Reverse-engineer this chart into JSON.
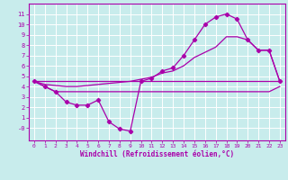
{
  "xlabel": "Windchill (Refroidissement éolien,°C)",
  "bg_color": "#c8ecec",
  "grid_color": "#b0d8d8",
  "line_color": "#aa00aa",
  "xlim": [
    -0.5,
    23.5
  ],
  "ylim": [
    -1.2,
    12.0
  ],
  "xticks": [
    0,
    1,
    2,
    3,
    4,
    5,
    6,
    7,
    8,
    9,
    10,
    11,
    12,
    13,
    14,
    15,
    16,
    17,
    18,
    19,
    20,
    21,
    22,
    23
  ],
  "yticks": [
    0,
    1,
    2,
    3,
    4,
    5,
    6,
    7,
    8,
    9,
    10,
    11
  ],
  "ytick_labels": [
    "-0",
    "1",
    "2",
    "3",
    "4",
    "5",
    "6",
    "7",
    "8",
    "9",
    "10",
    "11"
  ],
  "line1_x": [
    0,
    1,
    2,
    3,
    4,
    5,
    6,
    7,
    8,
    9,
    10,
    11,
    12,
    13,
    14,
    15,
    16,
    17,
    18,
    19,
    20,
    21,
    22,
    23
  ],
  "line1_y": [
    4.5,
    4.0,
    3.5,
    2.5,
    2.2,
    2.2,
    2.7,
    0.6,
    -0.1,
    -0.3,
    4.5,
    4.8,
    5.5,
    5.8,
    7.0,
    8.5,
    10.0,
    10.7,
    11.0,
    10.5,
    8.5,
    7.5,
    7.5,
    4.5
  ],
  "line2_x": [
    0,
    1,
    2,
    9,
    10,
    11,
    12,
    13,
    14,
    15,
    16,
    17,
    18,
    19,
    20,
    21,
    22,
    23
  ],
  "line2_y": [
    4.5,
    4.0,
    3.5,
    3.5,
    3.5,
    3.5,
    3.5,
    3.5,
    3.5,
    3.5,
    3.5,
    3.5,
    3.5,
    3.5,
    3.5,
    3.5,
    3.5,
    4.0
  ],
  "line3_x": [
    0,
    23
  ],
  "line3_y": [
    4.5,
    4.5
  ],
  "line4_x": [
    0,
    1,
    2,
    3,
    4,
    5,
    6,
    7,
    8,
    9,
    10,
    11,
    12,
    13,
    14,
    15,
    16,
    17,
    18,
    19,
    20,
    21,
    22,
    23
  ],
  "line4_y": [
    4.5,
    4.2,
    4.1,
    4.0,
    4.0,
    4.1,
    4.2,
    4.3,
    4.4,
    4.5,
    4.7,
    4.9,
    5.3,
    5.5,
    6.0,
    6.8,
    7.3,
    7.8,
    8.8,
    8.8,
    8.5,
    7.5,
    7.5,
    4.5
  ]
}
